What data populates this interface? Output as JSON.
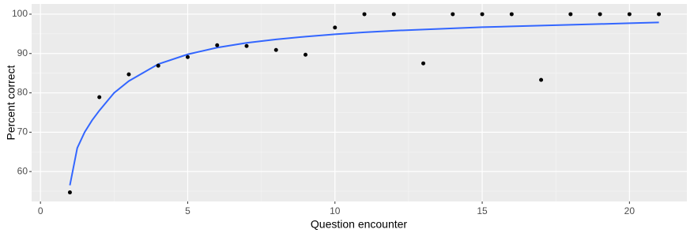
{
  "chart_data": {
    "type": "scatter",
    "xlabel": "Question encounter",
    "ylabel": "Percent correct",
    "x": [
      1,
      2,
      3,
      4,
      5,
      6,
      7,
      8,
      9,
      10,
      11,
      12,
      13,
      14,
      15,
      16,
      17,
      18,
      19,
      20,
      21
    ],
    "values": [
      54.7,
      78.9,
      84.7,
      86.9,
      89.1,
      92.1,
      91.9,
      90.9,
      89.7,
      96.6,
      100,
      100,
      87.5,
      100,
      100,
      100,
      83.3,
      100,
      100,
      100,
      100
    ],
    "color": "#000000",
    "fit": {
      "color": "#3366ff",
      "x": [
        1,
        1.25,
        1.5,
        1.75,
        2,
        2.5,
        3,
        4,
        5,
        6,
        7,
        8,
        9,
        10,
        11,
        12,
        13,
        14,
        15,
        16,
        17,
        18,
        19,
        20,
        21
      ],
      "values": [
        56.5,
        66,
        70,
        73,
        75.5,
        80,
        83,
        87.3,
        89.8,
        91.5,
        92.7,
        93.6,
        94.3,
        94.9,
        95.4,
        95.8,
        96.1,
        96.4,
        96.7,
        96.9,
        97.1,
        97.3,
        97.5,
        97.7,
        97.9
      ]
    },
    "xlim": [
      -0.3,
      21.95
    ],
    "xticks": [
      0,
      5,
      10,
      15,
      20
    ],
    "xminor": [
      2.5,
      7.5,
      12.5,
      17.5
    ],
    "ylim": [
      52.4,
      102.6
    ],
    "yticks": [
      60,
      70,
      80,
      90,
      100
    ],
    "yminor": [
      55,
      65,
      75,
      85,
      95
    ],
    "grid": true
  }
}
